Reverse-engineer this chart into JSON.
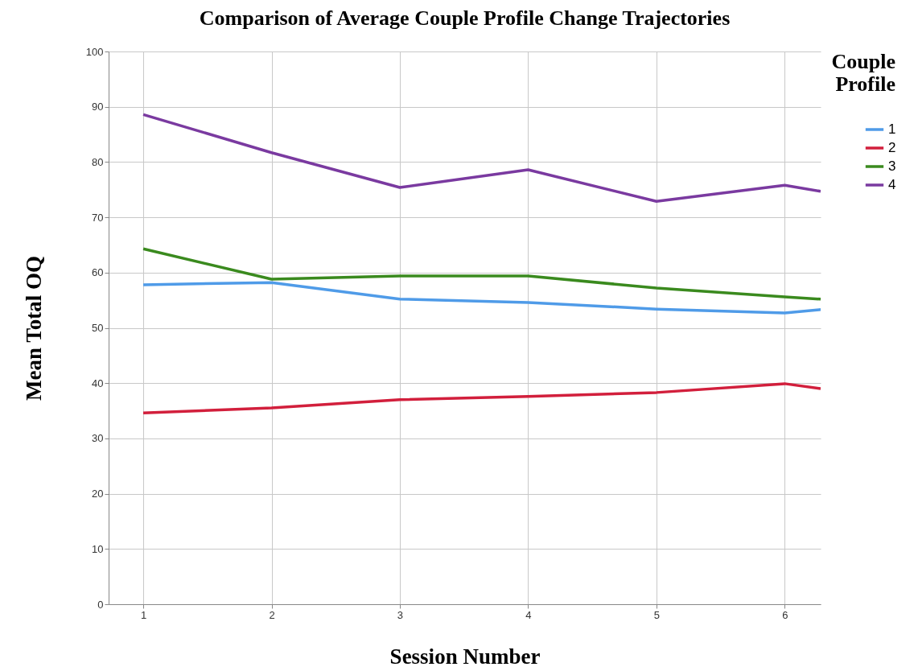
{
  "chart_data": {
    "type": "line",
    "title": "Comparison of Average Couple Profile Change Trajectories",
    "xlabel": "Session Number",
    "ylabel": "Mean Total OQ",
    "legend_title": "Couple Profile",
    "legend": "right",
    "grid": true,
    "line_style": "solid",
    "marker": "none",
    "x": [
      1,
      2,
      3,
      4,
      5,
      6,
      6.28
    ],
    "xlim": [
      0.73,
      6.28
    ],
    "xticks": [
      1,
      2,
      3,
      4,
      5,
      6
    ],
    "ylim": [
      0,
      100
    ],
    "yticks": [
      0,
      10,
      20,
      30,
      40,
      50,
      60,
      70,
      80,
      90,
      100
    ],
    "series": [
      {
        "name": "1",
        "color": "#4f9be8",
        "values": [
          57.8,
          58.2,
          55.2,
          54.6,
          53.4,
          52.7,
          53.3
        ]
      },
      {
        "name": "2",
        "color": "#d21f3c",
        "values": [
          34.6,
          35.5,
          37.0,
          37.6,
          38.3,
          39.9,
          39.0
        ]
      },
      {
        "name": "3",
        "color": "#3a8a1e",
        "values": [
          64.3,
          58.8,
          59.4,
          59.4,
          57.2,
          55.6,
          55.2
        ]
      },
      {
        "name": "4",
        "color": "#7a3aa0",
        "values": [
          88.6,
          81.7,
          75.4,
          78.6,
          72.9,
          75.8,
          74.7
        ]
      }
    ]
  }
}
